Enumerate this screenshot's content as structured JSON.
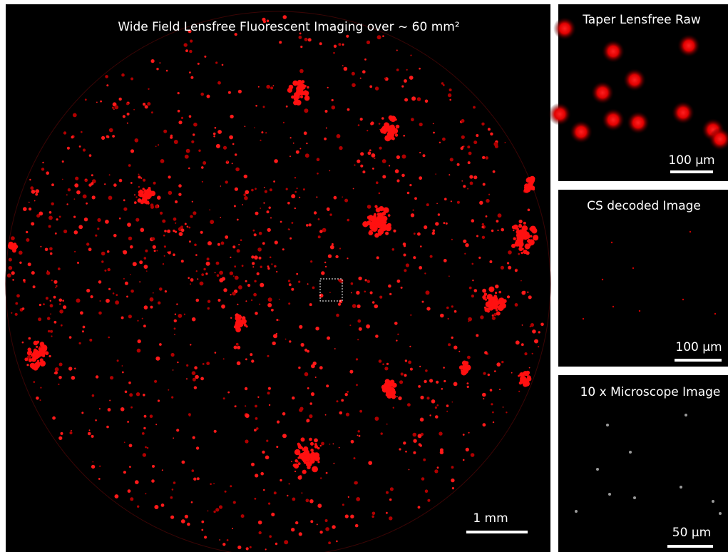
{
  "main": {
    "title": "Wide Field Lensfree Fluorescent Imaging over ~ 60 mm²",
    "scale_bar": "1 mm"
  },
  "panels": [
    {
      "title": "Taper Lensfree Raw",
      "scale_bar": "100 µm"
    },
    {
      "title": "CS decoded Image",
      "scale_bar": "100 µm"
    },
    {
      "title": "10 x Microscope Image",
      "scale_bar": "50 µm"
    }
  ]
}
